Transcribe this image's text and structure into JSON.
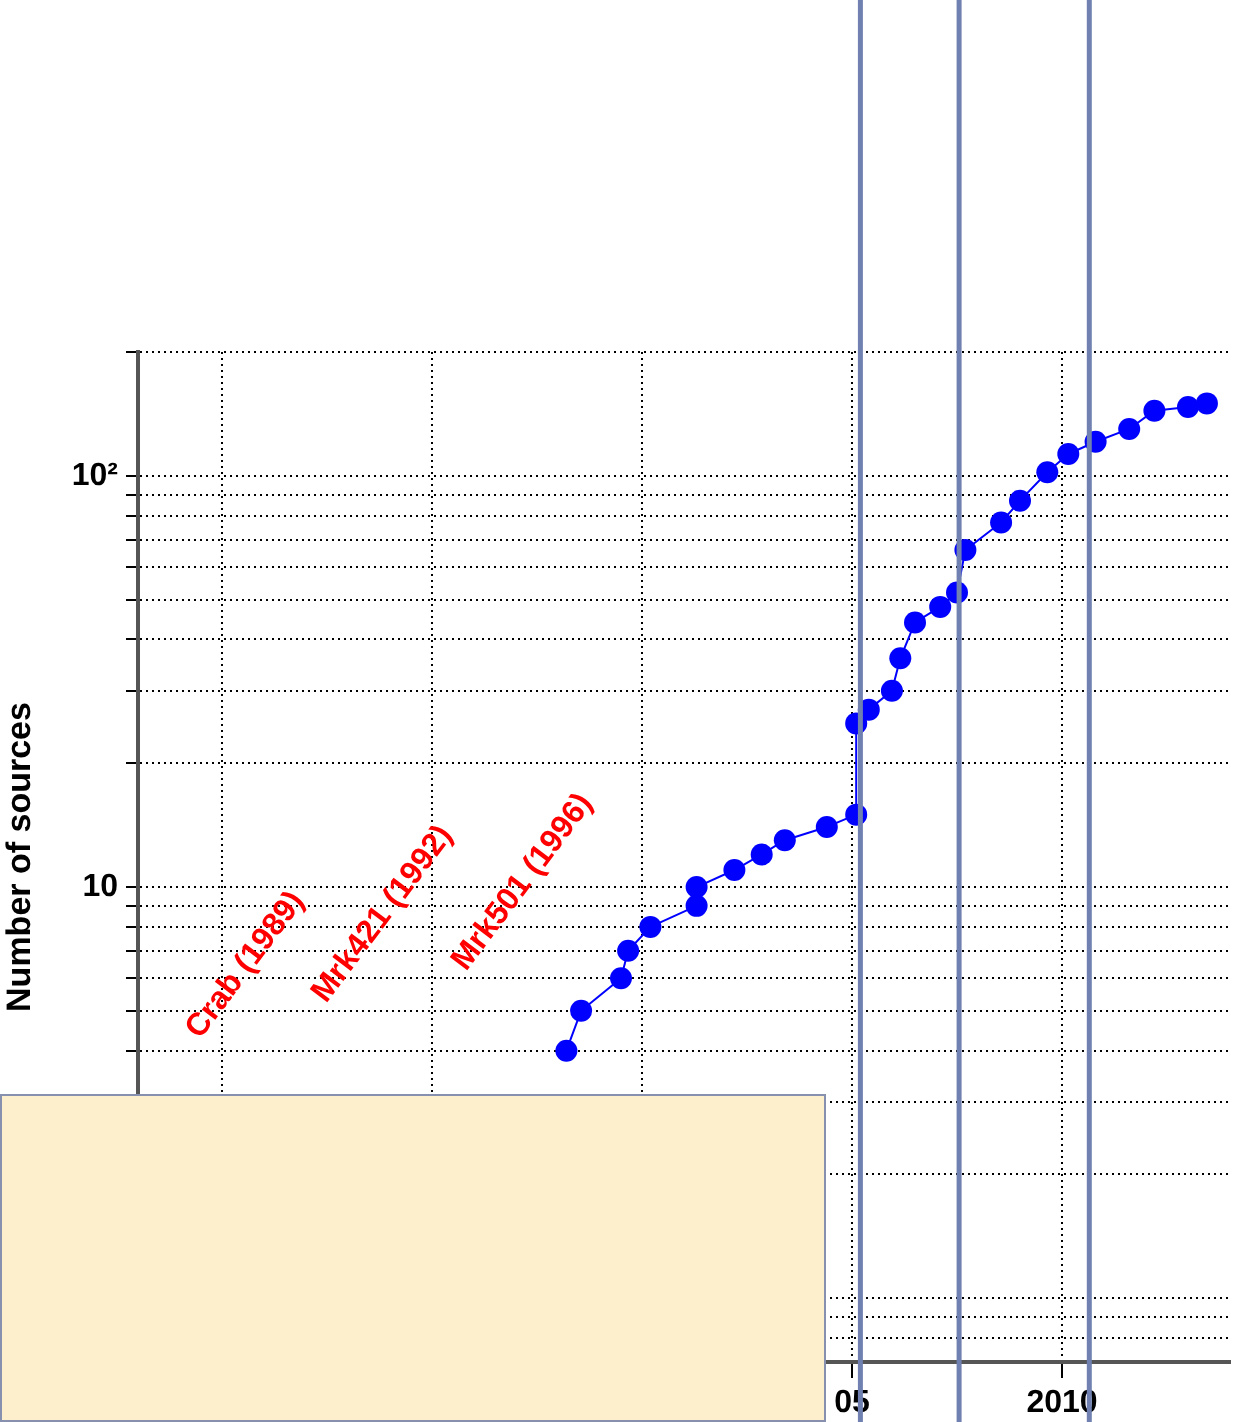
{
  "chart_data": {
    "type": "line",
    "ylabel": "Number of sources",
    "log": "y",
    "grid": true,
    "legend": false,
    "marker": "circle",
    "line_style": "solid",
    "xlim": [
      1988,
      2014
    ],
    "xticks": [
      {
        "value": 1990,
        "label": null
      },
      {
        "value": 1995,
        "label": null
      },
      {
        "value": 2000,
        "label": null
      },
      {
        "value": 2005,
        "label": "05"
      },
      2010
    ],
    "ylim": [
      0.7,
      200
    ],
    "yticks": [
      {
        "value": 0.8,
        "label": null
      },
      {
        "value": 0.9,
        "label": null
      },
      {
        "value": 1,
        "label": null
      },
      {
        "value": 2,
        "label": null
      },
      {
        "value": 3,
        "label": null
      },
      {
        "value": 4,
        "label": null
      },
      {
        "value": 5,
        "label": null
      },
      {
        "value": 6,
        "label": null
      },
      {
        "value": 7,
        "label": null
      },
      {
        "value": 8,
        "label": null
      },
      {
        "value": 9,
        "label": null
      },
      10,
      {
        "value": 20,
        "label": null
      },
      {
        "value": 30,
        "label": null
      },
      {
        "value": 40,
        "label": null
      },
      {
        "value": 50,
        "label": null
      },
      {
        "value": 60,
        "label": null
      },
      {
        "value": 70,
        "label": null
      },
      {
        "value": 80,
        "label": null
      },
      {
        "value": 90,
        "label": null
      },
      {
        "value": 100,
        "label": "10²"
      },
      {
        "value": 200,
        "label": null
      }
    ],
    "series": [
      {
        "color": "#0000ff",
        "x": [
          1998.2,
          1998.55,
          1999.5,
          1999.67,
          2000.2,
          2001.3,
          2001.3,
          2002.2,
          2002.85,
          2003.4,
          2004.4,
          2005.1,
          2005.1,
          2005.4,
          2005.95,
          2006.15,
          2006.5,
          2007.1,
          2007.5,
          2007.7,
          2008.55,
          2009.0,
          2009.65,
          2010.15,
          2010.8,
          2011.6,
          2012.2,
          2013.0,
          2013.45
        ],
        "values": [
          4,
          5,
          6,
          7,
          8,
          9,
          10,
          11,
          12,
          13,
          14,
          15,
          25,
          27,
          30,
          36,
          44,
          48,
          52,
          66,
          77,
          87,
          102,
          113,
          121,
          130,
          144,
          147,
          150
        ]
      }
    ],
    "annotations": [
      "Crab (1989)",
      "Mrk421 (1992)",
      "Mrk501 (1996)"
    ],
    "ref_lines": [
      {
        "axis": "x",
        "value": 2005.2,
        "color": "#7080b0"
      },
      {
        "axis": "x",
        "value": 2007.55,
        "color": "#7080b0"
      },
      {
        "axis": "x",
        "value": 2010.65,
        "color": "#7080b0"
      }
    ]
  }
}
